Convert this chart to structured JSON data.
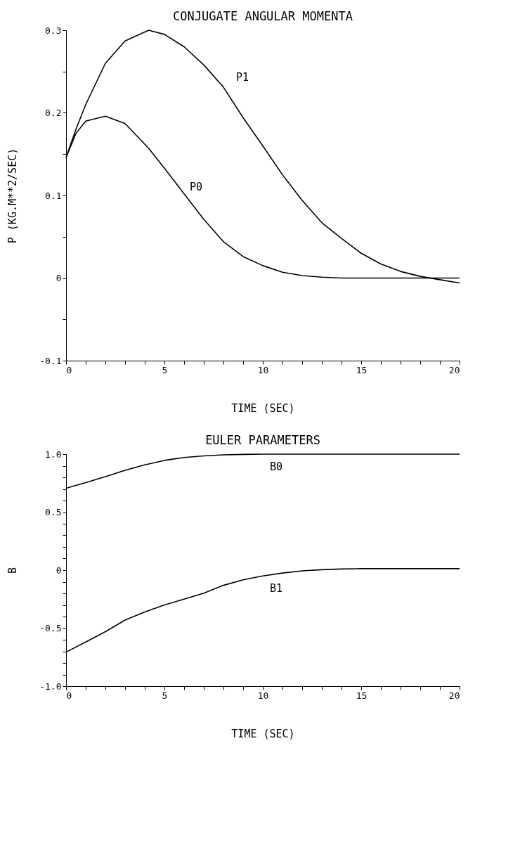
{
  "chart_data": [
    {
      "type": "line",
      "title": "CONJUGATE ANGULAR MOMENTA",
      "xlabel": "TIME (SEC)",
      "ylabel": "P (KG.M**2/SEC)",
      "x": [
        0,
        0.5,
        1,
        2,
        3,
        4.2,
        5,
        6,
        7,
        8,
        9,
        10,
        11,
        12,
        13,
        14,
        15,
        16,
        17,
        18,
        19,
        20
      ],
      "series": [
        {
          "name": "P1",
          "color": "#000000",
          "values": [
            0.146,
            0.18,
            0.21,
            0.26,
            0.287,
            0.3,
            0.295,
            0.28,
            0.258,
            0.231,
            0.194,
            0.16,
            0.125,
            0.094,
            0.067,
            0.048,
            0.03,
            0.017,
            0.008,
            0.002,
            -0.002,
            -0.006
          ]
        },
        {
          "name": "P0",
          "color": "#000000",
          "values": [
            0.146,
            0.175,
            0.19,
            0.196,
            0.187,
            0.157,
            0.133,
            0.102,
            0.071,
            0.044,
            0.026,
            0.015,
            0.007,
            0.003,
            0.001,
            0,
            0,
            0,
            0,
            0,
            0,
            0
          ]
        }
      ],
      "xlim": [
        0,
        20
      ],
      "xticks": [
        0,
        {
          "value": 1,
          "label": null
        },
        {
          "value": 2,
          "label": null
        },
        {
          "value": 3,
          "label": null
        },
        {
          "value": 4,
          "label": null
        },
        5,
        {
          "value": 6,
          "label": null
        },
        {
          "value": 7,
          "label": null
        },
        {
          "value": 8,
          "label": null
        },
        {
          "value": 9,
          "label": null
        },
        10,
        {
          "value": 11,
          "label": null
        },
        {
          "value": 12,
          "label": null
        },
        {
          "value": 13,
          "label": null
        },
        {
          "value": 14,
          "label": null
        },
        15,
        {
          "value": 16,
          "label": null
        },
        {
          "value": 17,
          "label": null
        },
        {
          "value": 18,
          "label": null
        },
        {
          "value": 19,
          "label": null
        },
        20
      ],
      "ylim": [
        -0.1,
        0.3
      ],
      "yticks": [
        -0.1,
        {
          "value": -0.05,
          "label": null
        },
        0,
        {
          "value": 0.05,
          "label": null
        },
        0.1,
        {
          "value": 0.15,
          "label": null
        },
        0.2,
        {
          "value": 0.25,
          "label": null
        },
        0.3
      ],
      "grid": false,
      "legend": false,
      "marker": "none",
      "line_style": "solid"
    },
    {
      "type": "line",
      "title": "EULER PARAMETERS",
      "xlabel": "TIME (SEC)",
      "ylabel": "B",
      "x": [
        0,
        1,
        2,
        3,
        4,
        5,
        6,
        7,
        8,
        9,
        10,
        11,
        12,
        13,
        14,
        15,
        16,
        17,
        18,
        19,
        20
      ],
      "series": [
        {
          "name": "B0",
          "color": "#000000",
          "values": [
            0.706,
            0.754,
            0.806,
            0.86,
            0.908,
            0.946,
            0.971,
            0.985,
            0.994,
            0.998,
            1,
            1,
            1,
            1,
            1,
            1,
            1,
            1,
            1,
            1,
            1
          ]
        },
        {
          "name": "B1",
          "color": "#000000",
          "values": [
            -0.707,
            -0.62,
            -0.53,
            -0.43,
            -0.36,
            -0.3,
            -0.25,
            -0.198,
            -0.131,
            -0.083,
            -0.05,
            -0.025,
            -0.006,
            0.004,
            0.01,
            0.013,
            0.013,
            0.013,
            0.013,
            0.013,
            0.013
          ]
        }
      ],
      "xlim": [
        0,
        20
      ],
      "xticks": [
        0,
        {
          "value": 1,
          "label": null
        },
        {
          "value": 2,
          "label": null
        },
        {
          "value": 3,
          "label": null
        },
        {
          "value": 4,
          "label": null
        },
        5,
        {
          "value": 6,
          "label": null
        },
        {
          "value": 7,
          "label": null
        },
        {
          "value": 8,
          "label": null
        },
        {
          "value": 9,
          "label": null
        },
        10,
        {
          "value": 11,
          "label": null
        },
        {
          "value": 12,
          "label": null
        },
        {
          "value": 13,
          "label": null
        },
        {
          "value": 14,
          "label": null
        },
        15,
        {
          "value": 16,
          "label": null
        },
        {
          "value": 17,
          "label": null
        },
        {
          "value": 18,
          "label": null
        },
        {
          "value": 19,
          "label": null
        },
        20
      ],
      "ylim": [
        -1,
        1
      ],
      "yticks": [
        {
          "value": -1,
          "label": "-1.0"
        },
        {
          "value": -0.9,
          "label": null
        },
        {
          "value": -0.8,
          "label": null
        },
        {
          "value": -0.7,
          "label": null
        },
        {
          "value": -0.6,
          "label": null
        },
        -0.5,
        {
          "value": -0.4,
          "label": null
        },
        {
          "value": -0.3,
          "label": null
        },
        {
          "value": -0.2,
          "label": null
        },
        {
          "value": -0.1,
          "label": null
        },
        0,
        {
          "value": 0.1,
          "label": null
        },
        {
          "value": 0.2,
          "label": null
        },
        {
          "value": 0.3,
          "label": null
        },
        {
          "value": 0.4,
          "label": null
        },
        0.5,
        {
          "value": 0.6,
          "label": null
        },
        {
          "value": 0.7,
          "label": null
        },
        {
          "value": 0.8,
          "label": null
        },
        {
          "value": 0.9,
          "label": null
        },
        {
          "value": 1,
          "label": "1.0"
        }
      ],
      "grid": false,
      "legend": false,
      "marker": "none",
      "line_style": "solid"
    }
  ]
}
